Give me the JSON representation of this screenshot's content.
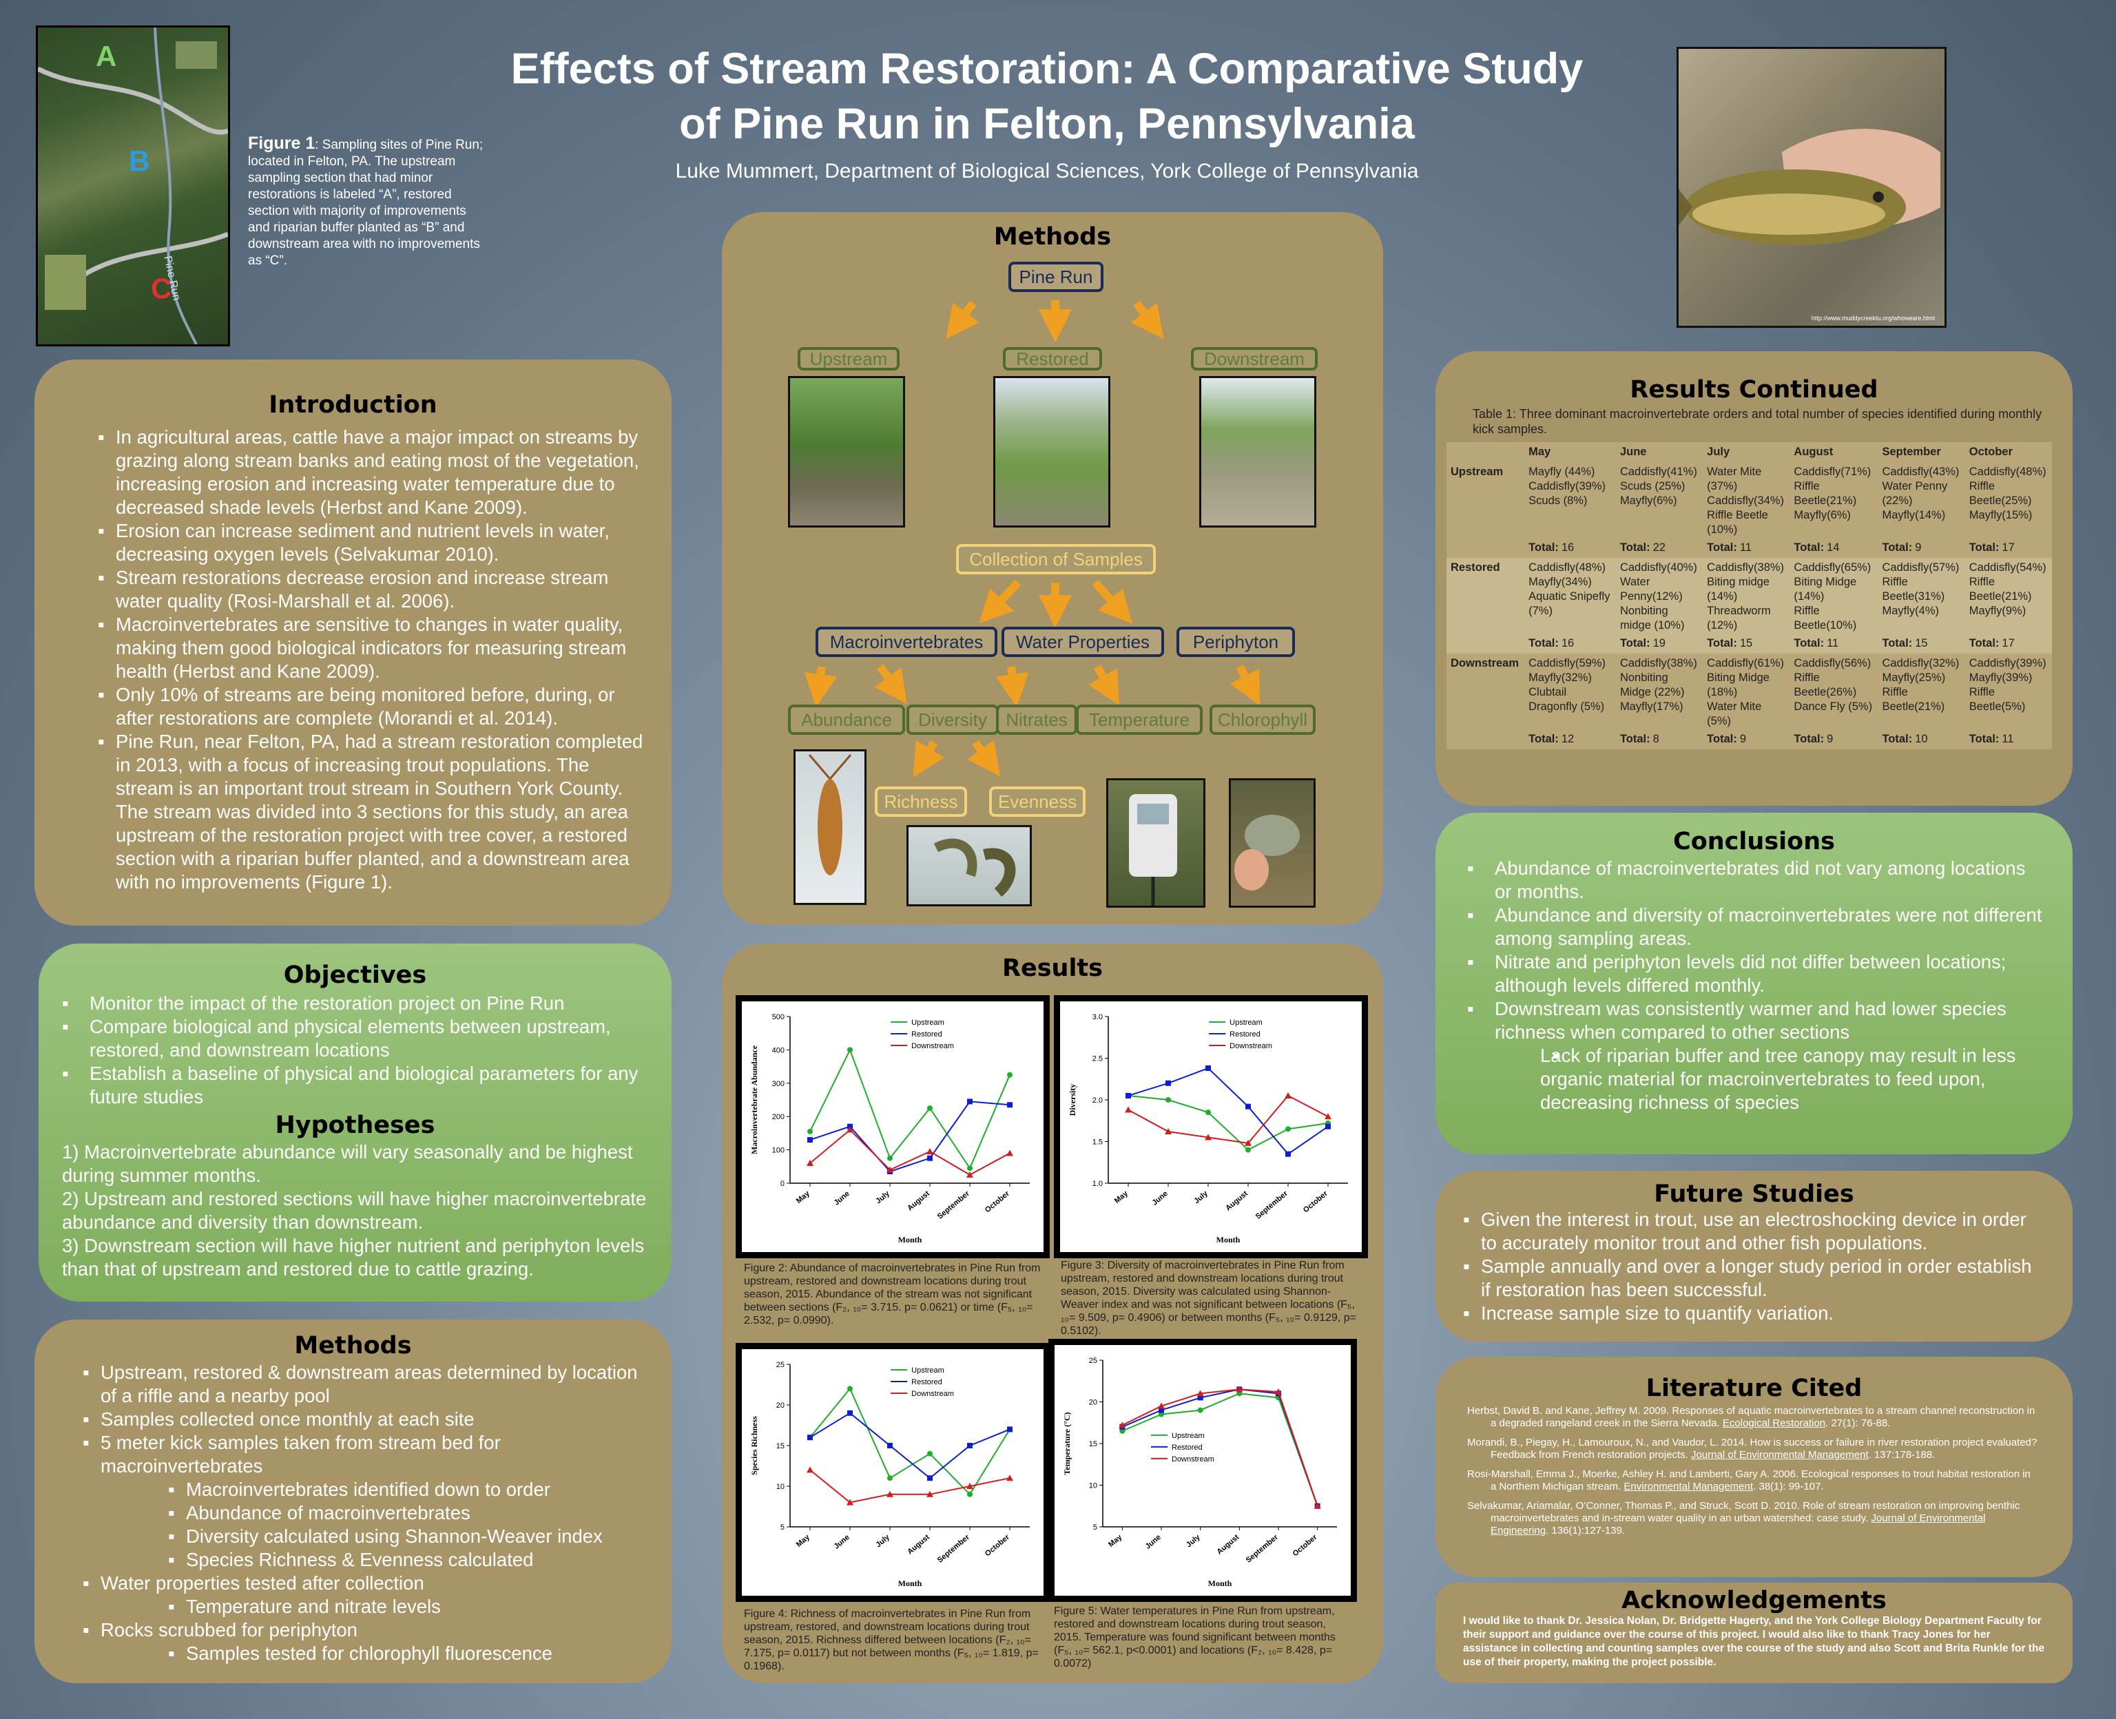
{
  "header": {
    "title_line1": "Effects of Stream Restoration: A Comparative Study",
    "title_line2": "of Pine Run in Felton, Pennsylvania",
    "author": "Luke Mummert, Department of Biological Sciences, York College of Pennsylvania"
  },
  "map": {
    "label_a": "A",
    "label_b": "B",
    "label_c": "C",
    "road1": "Pike Run Rd",
    "road2": "Pine Run",
    "caption_bold": "Figure 1",
    "caption": ": Sampling sites of Pine Run; located in Felton, PA. The upstream sampling section that had minor restorations is labeled “A”, restored section with majority of improvements and riparian buffer planted as “B” and downstream area with no improvements as “C”."
  },
  "trout_photo": {
    "credit": "http://www.muddycreektu.org/whoweare.html"
  },
  "introduction": {
    "title": "Introduction",
    "items": [
      "In agricultural areas, cattle have a major impact on streams by grazing along stream banks and eating most of the vegetation, increasing erosion and increasing water temperature due to decreased shade levels (Herbst and Kane 2009).",
      "Erosion can increase sediment and nutrient levels in water, decreasing oxygen levels (Selvakumar 2010).",
      "Stream restorations decrease erosion and increase stream water quality (Rosi-Marshall et al. 2006).",
      "Macroinvertebrates are sensitive to changes in water quality, making them good biological indicators for measuring stream health (Herbst and Kane 2009).",
      "Only 10% of streams are being monitored before, during, or after restorations are complete (Morandi et al. 2014).",
      "Pine Run, near Felton, PA, had a stream restoration completed in 2013, with a focus of increasing trout populations.  The stream is an important trout stream in Southern York County. The stream was divided into 3 sections for this study, an area upstream of the restoration project with tree cover, a restored section with a riparian buffer planted, and a downstream area with no improvements (Figure 1)."
    ]
  },
  "objectives": {
    "title": "Objectives",
    "items": [
      "Monitor the impact of the restoration project on Pine Run",
      "Compare biological and physical elements between upstream, restored, and downstream locations",
      "Establish a baseline of physical and biological parameters for any future studies"
    ]
  },
  "hypotheses": {
    "title": "Hypotheses",
    "items": [
      "1) Macroinvertebrate abundance will vary seasonally and be highest during summer months.",
      "2) Upstream and restored sections will have higher macroinvertebrate abundance and diversity than downstream.",
      "3) Downstream section will have higher nutrient and periphyton levels than that of upstream and restored due to cattle grazing."
    ]
  },
  "methods_text": {
    "title": "Methods",
    "items": [
      {
        "text": "Upstream, restored & downstream areas determined by location of a riffle and a nearby pool",
        "sub": false
      },
      {
        "text": "Samples collected once monthly at each site",
        "sub": false
      },
      {
        "text": "5 meter kick samples taken from stream bed for macroinvertebrates",
        "sub": false
      },
      {
        "text": "Macroinvertebrates identified down to order",
        "sub": true
      },
      {
        "text": "Abundance of macroinvertebrates",
        "sub": true
      },
      {
        "text": "Diversity calculated using Shannon-Weaver index",
        "sub": true
      },
      {
        "text": "Species Richness & Evenness calculated",
        "sub": true
      },
      {
        "text": "Water properties tested after collection",
        "sub": false
      },
      {
        "text": "Temperature and nitrate levels",
        "sub": true
      },
      {
        "text": "Rocks scrubbed for periphyton",
        "sub": false
      },
      {
        "text": "Samples tested for chlorophyll fluorescence",
        "sub": true
      }
    ]
  },
  "methods_diagram": {
    "title": "Methods",
    "root": "Pine Run",
    "upstream": "Upstream",
    "restored": "Restored",
    "downstream": "Downstream",
    "collection": "Collection of Samples",
    "macro": "Macroinvertebrates",
    "water": "Water Properties",
    "periphyton": "Periphyton",
    "abundance": "Abundance",
    "diversity": "Diversity",
    "nitrates": "Nitrates",
    "temperature": "Temperature",
    "chlorophyll": "Chlorophyll",
    "richness": "Richness",
    "evenness": "Evenness"
  },
  "results": {
    "title": "Results",
    "fig2_caption": "Figure 2: Abundance of macroinvertebrates in Pine Run from upstream, restored and downstream locations during trout season, 2015. Abundance of the stream was not significant between sections (F₂, ₁₀= 3.715. p= 0.0621) or time (F₅, ₁₀= 2.532, p= 0.0990).",
    "fig3_caption": "Figure 3: Diversity of macroinvertebrates in Pine Run from upstream, restored and downstream locations during trout season, 2015. Diversity was calculated using Shannon-Weaver index and was not significant between locations (F₅, ₁₀= 9.509, p= 0.4906) or between months (F₅, ₁₀= 0.9129, p= 0.5102).",
    "fig4_caption": "Figure 4: Richness of macroinvertebrates in Pine Run from upstream, restored, and downstream locations during trout season, 2015.  Richness differed between locations (F₂, ₁₀= 7.175, p= 0.0117) but not between months (F₅, ₁₀= 1.819, p= 0.1968).",
    "fig5_caption": "Figure 5: Water temperatures in Pine Run from upstream, restored and downstream locations during trout season, 2015.  Temperature was found significant between months (F₅, ₁₀= 562.1, p<0.0001) and locations (F₂, ₁₀= 8.428, p= 0.0072)"
  },
  "results_continued": {
    "title": "Results Continued",
    "table_caption": "Table 1: Three dominant macroinvertebrate orders and total number of species identified during monthly kick samples.",
    "months": [
      "May",
      "June",
      "July",
      "August",
      "September",
      "October"
    ],
    "rows": [
      {
        "location": "Upstream",
        "cells": [
          "Mayfly (44%)\nCaddisfly(39%)\nScuds (8%)",
          "Caddisfly(41%)\nScuds (25%)\nMayfly(6%)",
          "Water Mite\n(37%)\nCaddisfly(34%)\nRiffle Beetle\n(10%)",
          "Caddisfly(71%)\nRiffle\nBeetle(21%)\nMayfly(6%)",
          "Caddisfly(43%)\nWater Penny\n(22%)\nMayfly(14%)",
          "Caddisfly(48%)\nRiffle\nBeetle(25%)\nMayfly(15%)"
        ],
        "totals": [
          "16",
          "22",
          "11",
          "14",
          "9",
          "17"
        ]
      },
      {
        "location": "Restored",
        "cells": [
          "Caddisfly(48%)\nMayfly(34%)\nAquatic Snipefly\n(7%)",
          "Caddisfly(40%)\nWater\nPenny(12%)\nNonbiting\nmidge (10%)",
          "Caddisfly(38%)\nBiting midge\n(14%)\nThreadworm\n(12%)",
          "Caddisfly(65%)\nBiting Midge\n(14%)\nRiffle\nBeetle(10%)",
          "Caddisfly(57%)\nRiffle\nBeetle(31%)\nMayfly(4%)",
          "Caddisfly(54%)\nRiffle\nBeetle(21%)\nMayfly(9%)"
        ],
        "totals": [
          "16",
          "19",
          "15",
          "11",
          "15",
          "17"
        ]
      },
      {
        "location": "Downstream",
        "cells": [
          "Caddisfly(59%)\nMayfly(32%)\nClubtail\nDragonfly (5%)",
          "Caddisfly(38%)\nNonbiting\nMidge (22%)\nMayfly(17%)",
          "Caddisfly(61%)\nBiting Midge\n(18%)\nWater Mite\n(5%)",
          "Caddisfly(56%)\nRiffle\nBeetle(26%)\nDance Fly (5%)",
          "Caddisfly(32%)\nMayfly(25%)\nRiffle\nBeetle(21%)",
          "Caddisfly(39%)\nMayfly(39%)\nRiffle\nBeetle(5%)"
        ],
        "totals": [
          "12",
          "8",
          "9",
          "9",
          "10",
          "11"
        ]
      }
    ],
    "total_label": "Total:"
  },
  "conclusions": {
    "title": "Conclusions",
    "items": [
      {
        "text": "Abundance of macroinvertebrates did not vary among locations or months.",
        "sub": false
      },
      {
        "text": "Abundance and diversity of macroinvertebrates were not different among sampling areas.",
        "sub": false
      },
      {
        "text": "Nitrate and periphyton levels did not differ between locations; although levels differed monthly.",
        "sub": false
      },
      {
        "text": "Downstream was consistently warmer and had lower species richness when compared to other sections",
        "sub": false
      },
      {
        "text": "Lack of riparian buffer and tree canopy may result in less organic material for macroinvertebrates to feed upon, decreasing richness of species",
        "sub": true
      }
    ]
  },
  "future_studies": {
    "title": "Future Studies",
    "items": [
      "Given the interest in trout, use an electroshocking device in order to accurately monitor trout and other fish populations.",
      "Sample annually and over a longer study period in order establish if restoration has been successful.",
      "Increase sample size to quantify variation."
    ]
  },
  "literature": {
    "title": "Literature Cited",
    "refs": [
      {
        "pre": "Herbst, David B. and Kane, Jeffrey M. 2009. Responses of aquatic macroinvertebrates to a stream channel reconstruction in a degraded rangeland creek in the Sierra Nevada. ",
        "journal": "Ecological Restoration",
        "post": ". 27(1): 76-88."
      },
      {
        "pre": "Morandi, B., Piegay, H., Lamouroux, N., and Vaudor, L. 2014. How is success or failure in river restoration project evaluated? Feedback from French restoration projects. ",
        "journal": "Journal of Environmental Management",
        "post": ". 137:178-188."
      },
      {
        "pre": "Rosi-Marshall, Emma J., Moerke, Ashley H. and Lamberti, Gary A. 2006. Ecological responses to trout habitat restoration in a Northern Michigan stream. ",
        "journal": "Environmental Management",
        "post": ". 38(1): 99-107."
      },
      {
        "pre": "Selvakumar, Ariamalar, O’Conner, Thomas P., and Struck, Scott D. 2010. Role of stream restoration on improving benthic macroinvertebrates and in-stream water quality in an urban watershed: case study. ",
        "journal": "Journal of Environmental Engineering",
        "post": ". 136(1):127-139."
      }
    ]
  },
  "acknowledgements": {
    "title": "Acknowledgements",
    "text": "I would like to thank Dr. Jessica Nolan, Dr. Bridgette Hagerty, and the York College Biology Department Faculty for their support and guidance over the course of this project. I would also like to thank Tracy Jones for her assistance in collecting and counting samples over the course of the study and also Scott and Brita Runkle for the use of their property, making the project possible."
  },
  "chart_data": [
    {
      "type": "line",
      "categories": [
        "May",
        "June",
        "July",
        "August",
        "September",
        "October"
      ],
      "series": [
        {
          "name": "Upstream",
          "values": [
            155,
            400,
            75,
            225,
            45,
            325
          ],
          "color": "#1fae2b"
        },
        {
          "name": "Restored",
          "values": [
            130,
            170,
            35,
            75,
            245,
            235
          ],
          "color": "#0c1fd0"
        },
        {
          "name": "Downstream",
          "values": [
            60,
            160,
            40,
            95,
            25,
            90
          ],
          "color": "#d51b1b"
        }
      ],
      "title": "",
      "xlabel": "Month",
      "ylabel": "Macroinvertebrate Abundance",
      "ylim": [
        0,
        500
      ],
      "yticks": [
        0,
        100,
        200,
        300,
        400,
        500
      ],
      "yticklabels": [
        "0",
        "100",
        "200",
        "300",
        "400",
        "500"
      ],
      "legend": "top-center"
    },
    {
      "type": "line",
      "categories": [
        "May",
        "June",
        "July",
        "August",
        "September",
        "October"
      ],
      "series": [
        {
          "name": "Upstream",
          "values": [
            2.05,
            2.0,
            1.85,
            1.4,
            1.65,
            1.72
          ],
          "color": "#1fae2b"
        },
        {
          "name": "Restored",
          "values": [
            2.05,
            2.2,
            2.38,
            1.92,
            1.35,
            1.68
          ],
          "color": "#0c1fd0"
        },
        {
          "name": "Downstream",
          "values": [
            1.88,
            1.62,
            1.55,
            1.48,
            2.05,
            1.8
          ],
          "color": "#d51b1b"
        }
      ],
      "title": "",
      "xlabel": "Month",
      "ylabel": "Diversity",
      "ylim": [
        1.0,
        3.0
      ],
      "yticks": [
        1.0,
        1.5,
        2.0,
        2.5,
        3.0
      ],
      "yticklabels": [
        "1.0",
        "1.5",
        "2.0",
        "2.5",
        "3.0"
      ],
      "legend": "top-center"
    },
    {
      "type": "line",
      "categories": [
        "May",
        "June",
        "July",
        "August",
        "September",
        "October"
      ],
      "series": [
        {
          "name": "Upstream",
          "values": [
            16,
            22,
            11,
            14,
            9,
            17
          ],
          "color": "#1fae2b"
        },
        {
          "name": "Restored",
          "values": [
            16,
            19,
            15,
            11,
            15,
            17
          ],
          "color": "#0c1fd0"
        },
        {
          "name": "Downstream",
          "values": [
            12,
            8,
            9,
            9,
            10,
            11
          ],
          "color": "#d51b1b"
        }
      ],
      "title": "",
      "xlabel": "Month",
      "ylabel": "Species Richness",
      "ylim": [
        5,
        25
      ],
      "yticks": [
        5,
        10,
        15,
        20,
        25
      ],
      "yticklabels": [
        "5",
        "10",
        "15",
        "20",
        "25"
      ],
      "legend": "top-center"
    },
    {
      "type": "line",
      "categories": [
        "May",
        "June",
        "July",
        "August",
        "September",
        "October"
      ],
      "series": [
        {
          "name": "Upstream",
          "values": [
            16.5,
            18.5,
            19,
            21,
            20.5,
            7.5
          ],
          "color": "#1fae2b"
        },
        {
          "name": "Restored",
          "values": [
            17,
            19,
            20.5,
            21.5,
            21,
            7.5
          ],
          "color": "#0c1fd0"
        },
        {
          "name": "Downstream",
          "values": [
            17.2,
            19.5,
            21,
            21.5,
            21.2,
            7.5
          ],
          "color": "#d51b1b"
        }
      ],
      "title": "",
      "xlabel": "Month",
      "ylabel": "Temperature (°C)",
      "ylim": [
        5,
        25
      ],
      "yticks": [
        5,
        10,
        15,
        20,
        25
      ],
      "yticklabels": [
        "5",
        "10",
        "15",
        "20",
        "25"
      ],
      "legend": "middle-left"
    }
  ]
}
